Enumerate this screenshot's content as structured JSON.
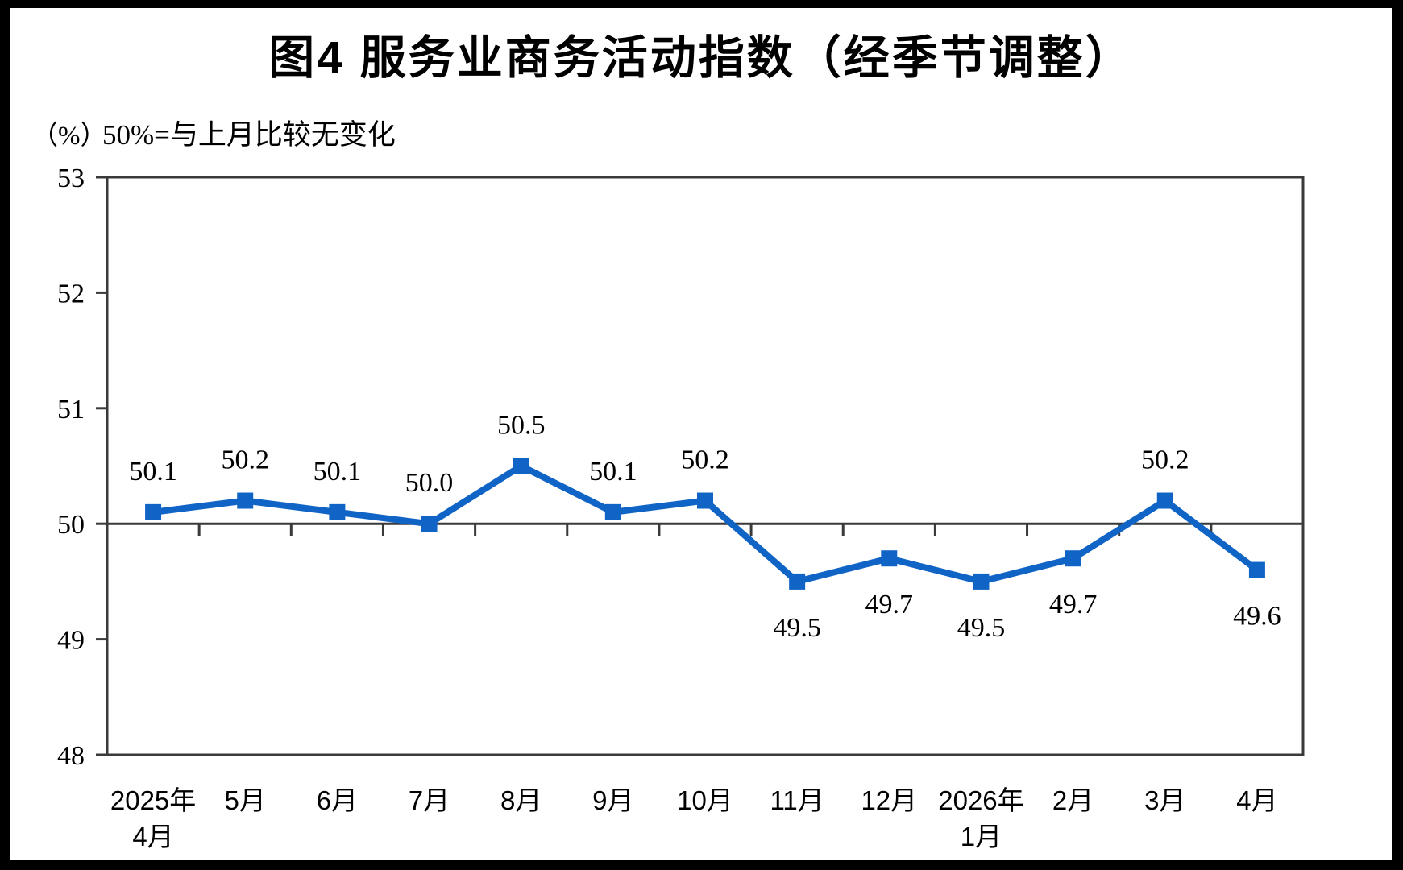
{
  "page": {
    "title": "图4 服务业商务活动指数（经季节调整）",
    "unit_label": "（%）",
    "note": "50%=与上月比较无变化"
  },
  "colors": {
    "series_line": "#1064C6",
    "axis": "#3A3A3A",
    "text": "#000000",
    "page_background": "#FFFFFF",
    "frame": "#000000"
  },
  "chart_data": {
    "type": "line",
    "title": "图4 服务业商务活动指数（经季节调整）",
    "unit": "（%）",
    "annotation": "50%=与上月比较无变化",
    "categories": [
      "2025年\n4月",
      "5月",
      "6月",
      "7月",
      "8月",
      "9月",
      "10月",
      "11月",
      "12月",
      "2026年\n1月",
      "2月",
      "3月",
      "4月"
    ],
    "series": [
      {
        "name": "服务业商务活动指数",
        "values": [
          50.1,
          50.2,
          50.1,
          50.0,
          50.5,
          50.1,
          50.2,
          49.5,
          49.7,
          49.5,
          49.7,
          50.2,
          49.6
        ],
        "labels": [
          "50.1",
          "50.2",
          "50.1",
          "50.0",
          "50.5",
          "50.1",
          "50.2",
          "49.5",
          "49.7",
          "49.5",
          "49.7",
          "50.2",
          "49.6"
        ]
      }
    ],
    "ylim": [
      48,
      53
    ],
    "yticks": [
      48,
      49,
      50,
      51,
      52,
      53
    ],
    "reference_line_y": 50,
    "grid": false,
    "legend_position": "none",
    "marker": "square",
    "data_labels": true
  }
}
